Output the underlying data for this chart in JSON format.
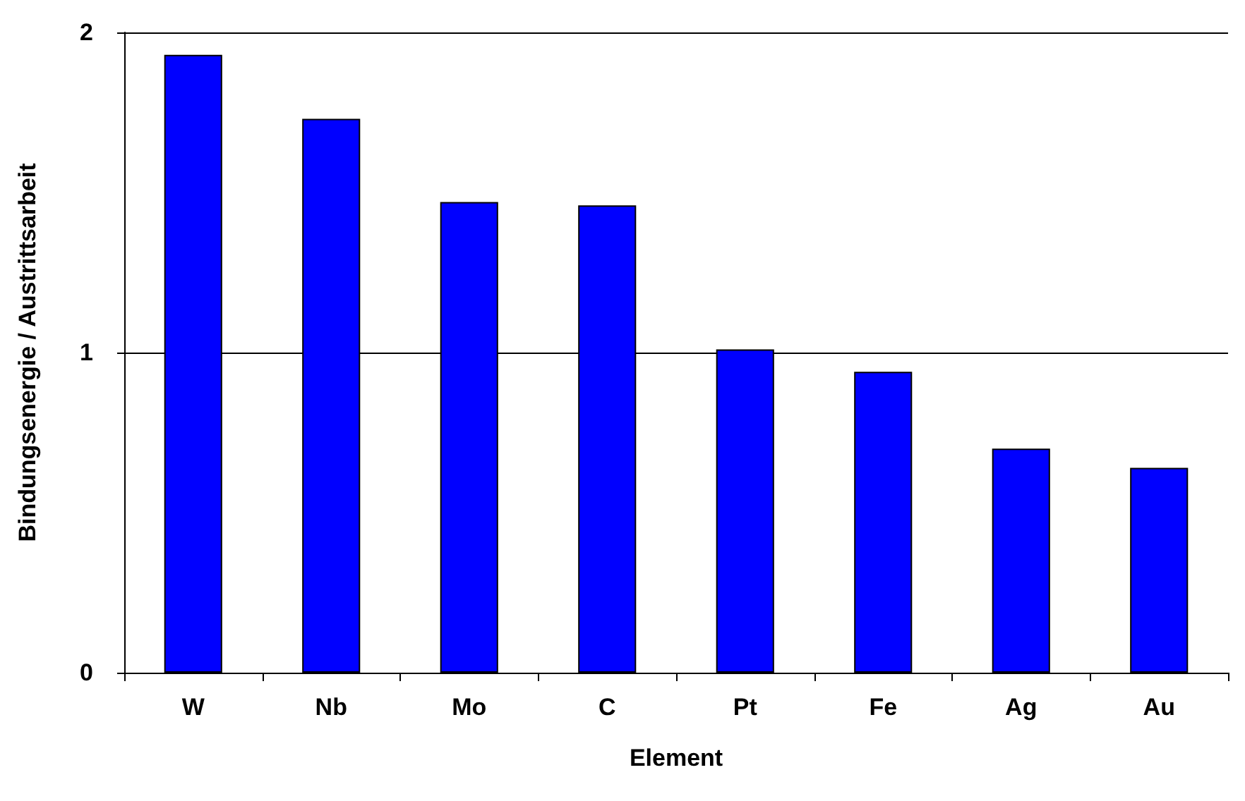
{
  "chart_data": {
    "type": "bar",
    "xlabel": "Element",
    "ylabel": "Bindungsenergie / Austrittsarbeit",
    "categories": [
      "W",
      "Nb",
      "Mo",
      "C",
      "Pt",
      "Fe",
      "Ag",
      "Au"
    ],
    "values": [
      1.93,
      1.73,
      1.47,
      1.46,
      1.01,
      0.94,
      0.7,
      0.64
    ],
    "color": "#0000ff",
    "ylim": [
      0,
      2
    ],
    "yticks": [
      0,
      1,
      2
    ],
    "grid": "y"
  }
}
